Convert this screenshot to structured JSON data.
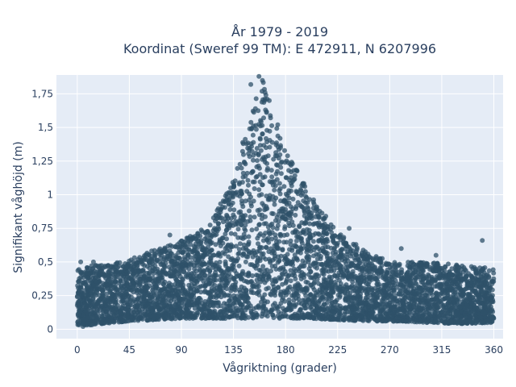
{
  "chart_data": {
    "type": "scatter",
    "title_lines": [
      "År 1979 - 2019",
      "Koordinat (Sweref 99 TM): E 472911, N 6207996"
    ],
    "xlabel": "Vågriktning (grader)",
    "ylabel": "Signifikant våghöjd (m)",
    "xlim": [
      -18,
      368
    ],
    "ylim": [
      -0.07,
      1.89
    ],
    "x_ticks": [
      0,
      45,
      90,
      135,
      180,
      225,
      270,
      315,
      360
    ],
    "x_tick_labels": [
      "0",
      "45",
      "90",
      "135",
      "180",
      "225",
      "270",
      "315",
      "360"
    ],
    "y_ticks": [
      0,
      0.25,
      0.5,
      0.75,
      1,
      1.25,
      1.5,
      1.75
    ],
    "y_tick_labels": [
      "0",
      "0,25",
      "0,5",
      "0,75",
      "1",
      "1,25",
      "1,5",
      "1,75"
    ],
    "grid": true,
    "background_color": "#e5ecf6",
    "marker_color": "#2f5269",
    "envelope": {
      "x": [
        0,
        10,
        20,
        45,
        70,
        90,
        110,
        125,
        135,
        145,
        150,
        155,
        160,
        170,
        180,
        190,
        200,
        225,
        250,
        270,
        300,
        330,
        360
      ],
      "y_min": [
        0.03,
        0.03,
        0.04,
        0.06,
        0.07,
        0.08,
        0.08,
        0.08,
        0.08,
        0.08,
        0.08,
        0.08,
        0.08,
        0.08,
        0.08,
        0.08,
        0.08,
        0.07,
        0.06,
        0.06,
        0.05,
        0.04,
        0.05
      ],
      "y_max": [
        0.45,
        0.47,
        0.48,
        0.52,
        0.6,
        0.66,
        0.75,
        0.95,
        1.15,
        1.45,
        1.58,
        1.78,
        1.86,
        1.62,
        1.32,
        1.18,
        1.02,
        0.72,
        0.58,
        0.5,
        0.5,
        0.48,
        0.45
      ]
    },
    "outliers": [
      {
        "x": 3,
        "y": 0.5
      },
      {
        "x": 14,
        "y": 0.5
      },
      {
        "x": 80,
        "y": 0.7
      },
      {
        "x": 235,
        "y": 0.75
      },
      {
        "x": 280,
        "y": 0.6
      },
      {
        "x": 310,
        "y": 0.55
      },
      {
        "x": 350,
        "y": 0.66
      },
      {
        "x": 150,
        "y": 1.82
      },
      {
        "x": 157,
        "y": 1.88
      },
      {
        "x": 160,
        "y": 1.85
      },
      {
        "x": 5,
        "y": 0.02
      }
    ]
  }
}
